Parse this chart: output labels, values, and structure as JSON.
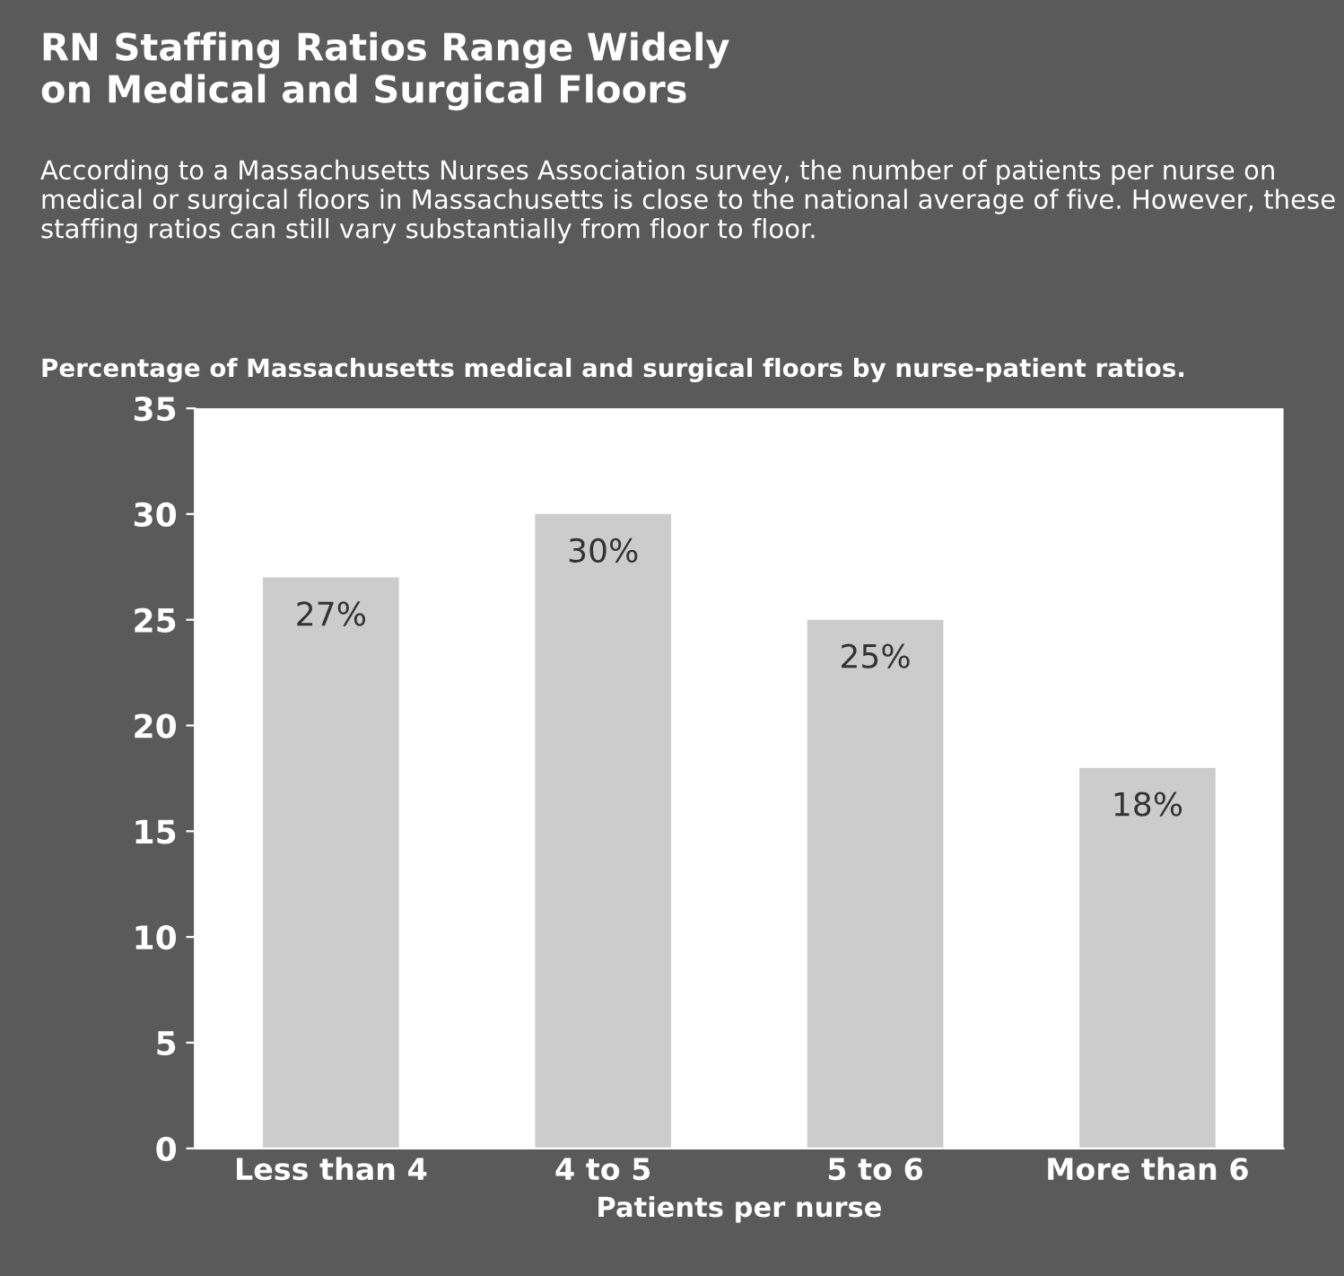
{
  "chart_data": {
    "type": "bar",
    "title": "RN Staffing Ratios Range Widely\non Medical and Surgical Floors",
    "subtitle": "According to a Massachusetts Nurses Association survey, the number of patients per nurse on medical or surgical floors in Massachusetts is close to the national average of five. However, these staffing ratios can still vary substantially from floor to floor.",
    "annotations": [
      "Percentage of Massachusetts medical and surgical floors by nurse-patient ratios."
    ],
    "xlabel": "Patients per nurse",
    "categories": [
      "Less than 4",
      "4 to 5",
      "5 to 6",
      "More than 6"
    ],
    "values": [
      27,
      30,
      25,
      18
    ],
    "value_labels": [
      "27%",
      "30%",
      "25%",
      "18%"
    ],
    "color": "#cccccc",
    "ylim": [
      0,
      35
    ],
    "yticks": [
      0,
      5,
      10,
      15,
      20,
      25,
      30,
      35
    ],
    "grid": false,
    "legend": false
  }
}
